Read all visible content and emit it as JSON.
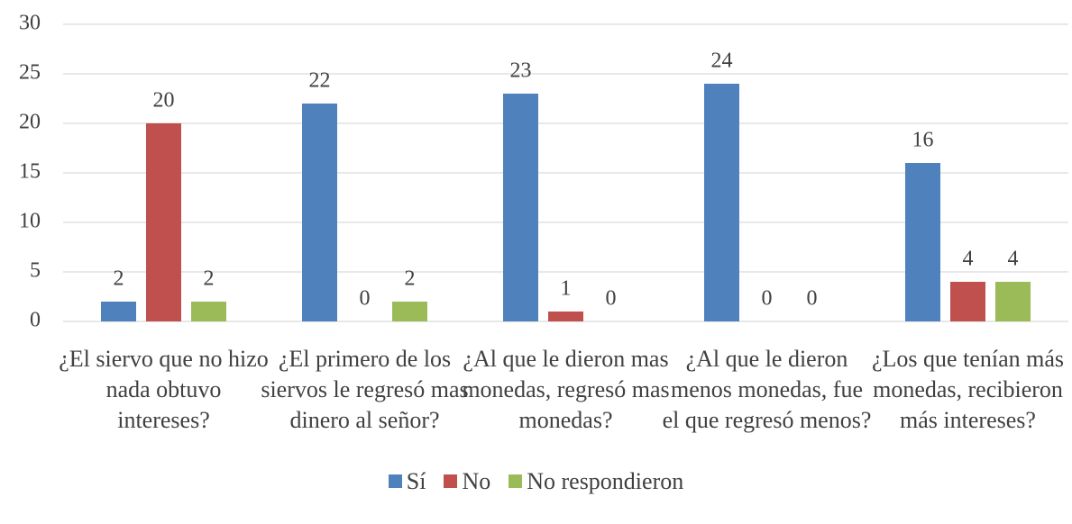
{
  "chart_data": {
    "type": "bar",
    "categories": [
      "¿El siervo que no hizo nada obtuvo intereses?",
      "¿El primero de los siervos le regresó mas dinero al señor?",
      "¿Al que le dieron mas monedas, regresó mas monedas?",
      "¿Al que le dieron menos monedas, fue el que regresó menos?",
      "¿Los que tenían más monedas, recibieron más intereses?"
    ],
    "series": [
      {
        "name": "Sí",
        "color": "#4f81bd",
        "values": [
          2,
          22,
          23,
          24,
          16
        ]
      },
      {
        "name": "No",
        "color": "#c0504d",
        "values": [
          20,
          0,
          1,
          0,
          4
        ]
      },
      {
        "name": "No respondieron",
        "color": "#9bbb59",
        "values": [
          2,
          2,
          0,
          0,
          4
        ]
      }
    ],
    "ylim": [
      0,
      30
    ],
    "yticks": [
      0,
      5,
      10,
      15,
      20,
      25,
      30
    ],
    "grid": true,
    "legend": "bottom"
  }
}
